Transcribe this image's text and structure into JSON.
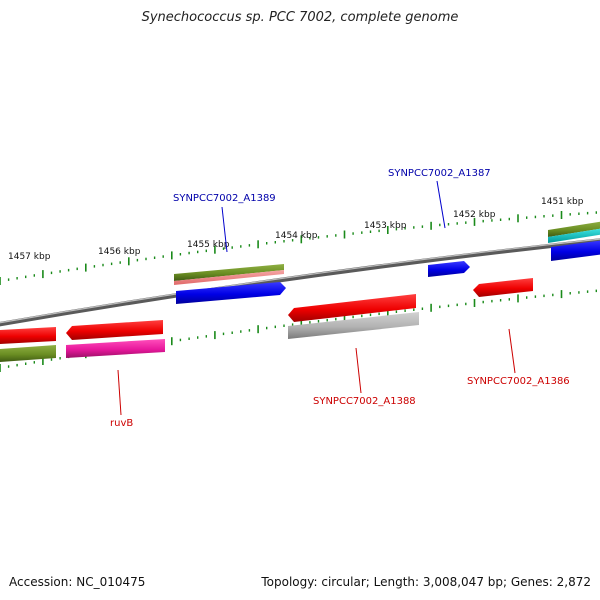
{
  "title": "Synechococcus sp. PCC 7002, complete genome",
  "footer": {
    "accession": "Accession: NC_010475",
    "summary": "Topology: circular; Length: 3,008,047 bp; Genes: 2,872"
  },
  "scale": {
    "labels": [
      "1457 kbp",
      "1456 kbp",
      "1455 kbp",
      "1454 kbp",
      "1453 kbp",
      "1452 kbp",
      "1451 kbp"
    ]
  },
  "genes": {
    "a1389": "SYNPCC7002_A1389",
    "a1387": "SYNPCC7002_A1387",
    "a1388": "SYNPCC7002_A1388",
    "a1386": "SYNPCC7002_A1386",
    "ruvb": "ruvB"
  },
  "colors": {
    "forward_label": "#0000aa",
    "reverse_label": "#cc0000",
    "backbone": "#7a7a7a",
    "tick": "#1a8a1a",
    "cds_blue": "#0000ee",
    "cds_red": "#ee0000",
    "cds_magenta": "#e8189c",
    "cds_olive": "#6b8e23",
    "cds_grey": "#aaaaaa",
    "cds_pink": "#f08080",
    "cds_cyan": "#00cccc"
  }
}
